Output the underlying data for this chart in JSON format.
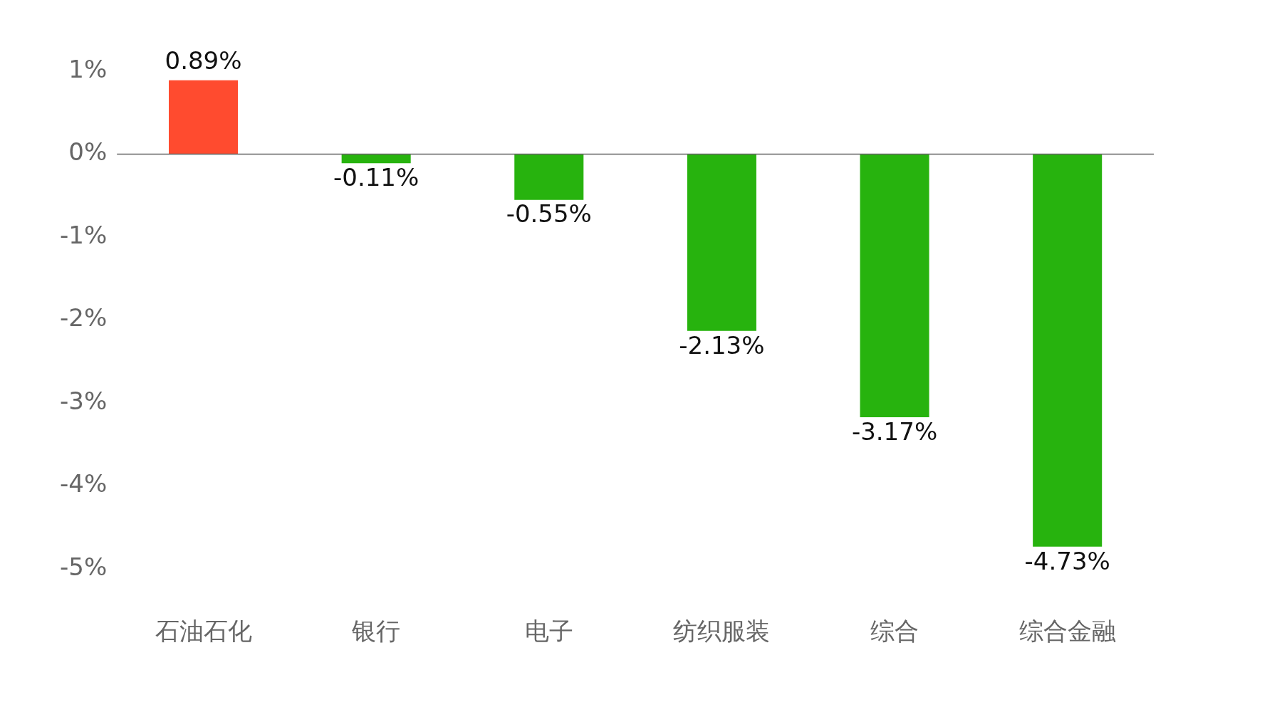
{
  "chart_data": {
    "type": "bar",
    "categories": [
      "石油石化",
      "银行",
      "电子",
      "纺织服装",
      "综合",
      "综合金融"
    ],
    "values": [
      0.89,
      -0.11,
      -0.55,
      -2.13,
      -3.17,
      -4.73
    ],
    "colors": [
      "#ff4b2f",
      "#27b30e",
      "#27b30e",
      "#27b30e",
      "#27b30e",
      "#27b30e"
    ],
    "value_labels": [
      "0.89%",
      "-0.11%",
      "-0.55%",
      "-2.13%",
      "-3.17%",
      "-4.73%"
    ],
    "ylim": [
      -5,
      1
    ],
    "ref_lines": [
      {
        "axis": "y",
        "value": 0,
        "color": "#666666"
      }
    ],
    "yticks": [
      {
        "value": 1,
        "label": "1%"
      },
      {
        "value": 0,
        "label": "0%"
      },
      {
        "value": -1,
        "label": "-1%"
      },
      {
        "value": -2,
        "label": "-2%"
      },
      {
        "value": -3,
        "label": "-3%"
      },
      {
        "value": -4,
        "label": "-4%"
      },
      {
        "value": -5,
        "label": "-5%"
      }
    ],
    "grid": false,
    "legend": false
  }
}
